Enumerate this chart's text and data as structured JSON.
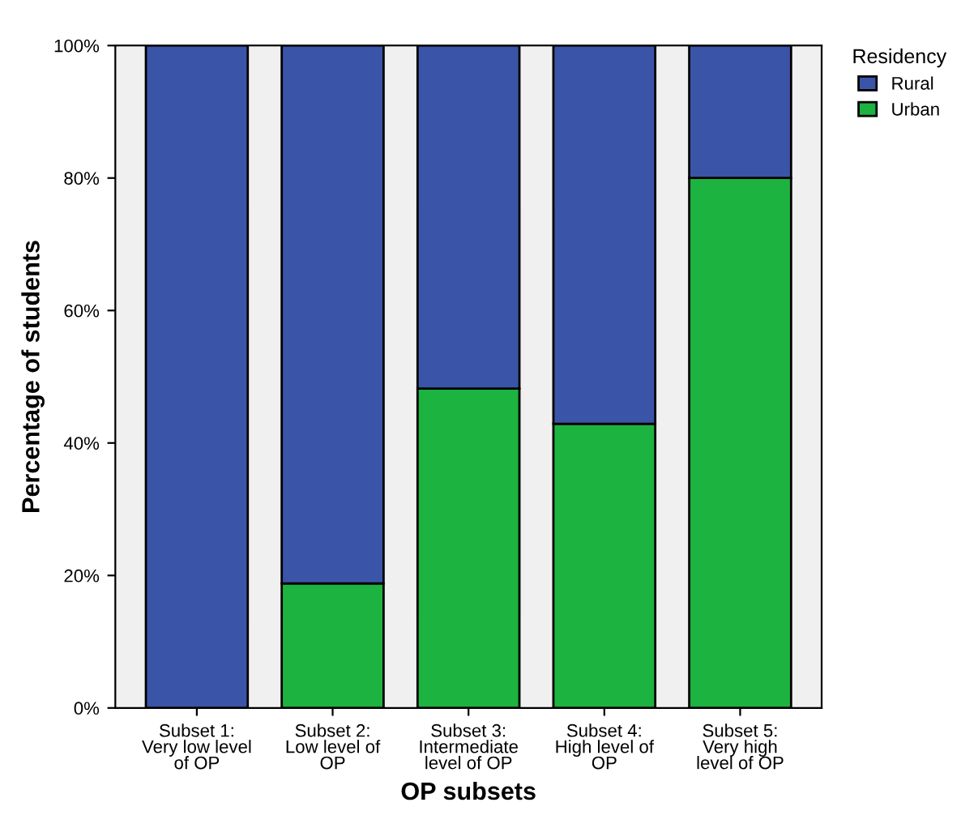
{
  "chart_data": {
    "type": "bar",
    "stacked": true,
    "xlabel": "OP subsets",
    "ylabel": "Percentage of students",
    "legend_title": "Residency",
    "legend": "right",
    "categories": [
      "Subset 1:\nVery low level\nof OP",
      "Subset 2:\nLow level of\nOP",
      "Subset 3:\nIntermediate\nlevel of OP",
      "Subset 4:\nHigh level of\nOP",
      "Subset 5:\nVery high\nlevel of OP"
    ],
    "series": [
      {
        "name": "Urban",
        "color": "#1db340",
        "values": [
          0,
          18.8,
          48.2,
          42.9,
          80
        ]
      },
      {
        "name": "Rural",
        "color": "#3a54a8",
        "values": [
          100,
          81.2,
          51.8,
          57.1,
          20
        ]
      }
    ],
    "ylim": [
      0,
      100
    ],
    "yticks": [
      {
        "value": 0,
        "label": "0%"
      },
      {
        "value": 20,
        "label": "20%"
      },
      {
        "value": 40,
        "label": "40%"
      },
      {
        "value": 60,
        "label": "60%"
      },
      {
        "value": 80,
        "label": "80%"
      },
      {
        "value": 100,
        "label": "100%"
      }
    ],
    "grid": false
  }
}
